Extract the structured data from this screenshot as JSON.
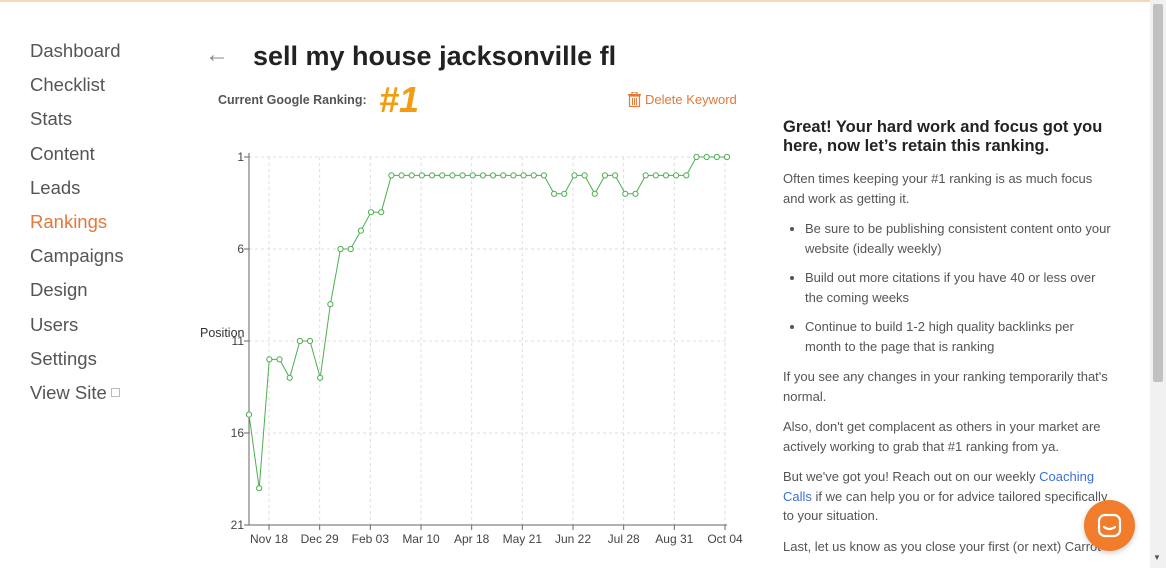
{
  "sidebar": {
    "items": [
      {
        "label": "Dashboard"
      },
      {
        "label": "Checklist"
      },
      {
        "label": "Stats"
      },
      {
        "label": "Content"
      },
      {
        "label": "Leads"
      },
      {
        "label": "Rankings",
        "active": true
      },
      {
        "label": "Campaigns"
      },
      {
        "label": "Design"
      },
      {
        "label": "Users"
      },
      {
        "label": "Settings"
      },
      {
        "label": "View Site",
        "icon": "external-link-icon"
      }
    ]
  },
  "header": {
    "title": "sell my house jacksonville fl",
    "back_icon": "arrow-left-icon"
  },
  "ranking": {
    "label": "Current Google Ranking:",
    "value": "#1",
    "delete_label": "Delete Keyword",
    "delete_icon": "trash-icon"
  },
  "colors": {
    "accent": "#e5773a",
    "rank": "#f39c12",
    "series": "#4caf50",
    "link": "#3b6fd6",
    "chat": "#f07c2c"
  },
  "chart_data": {
    "type": "line",
    "title": "",
    "xlabel": "",
    "ylabel": "Position",
    "yticks": [
      1,
      6,
      11,
      16,
      21
    ],
    "ylim": [
      21,
      1
    ],
    "y_reversed": true,
    "grid": true,
    "xticks": [
      "Nov 18",
      "Dec 29",
      "Feb 03",
      "Mar 10",
      "Apr 18",
      "May 21",
      "Jun 22",
      "Jul 28",
      "Aug 31",
      "Oct 04"
    ],
    "series": [
      {
        "name": "",
        "values": [
          15,
          19,
          12,
          12,
          13,
          11,
          11,
          13,
          9,
          6,
          6,
          5,
          4,
          4,
          2,
          2,
          2,
          2,
          2,
          2,
          2,
          2,
          2,
          2,
          2,
          2,
          2,
          2,
          2,
          2,
          3,
          3,
          2,
          2,
          3,
          2,
          2,
          3,
          3,
          2,
          2,
          2,
          2,
          2,
          1,
          1,
          1,
          1
        ]
      }
    ]
  },
  "panel": {
    "heading": "Great! Your hard work and focus got you here, now let’s retain this ranking.",
    "intro": "Often times keeping your #1 ranking is as much focus and work as getting it.",
    "bullets": [
      "Be sure to be publishing consistent content onto your website (ideally weekly)",
      "Build out more citations if you have 40 or less over the coming weeks",
      "Continue to build 1-2 high quality backlinks per month to the page that is ranking"
    ],
    "p1": "If you see any changes in your ranking temporarily that's normal.",
    "p2": "Also, don't get complacent as others in your market are actively working to grab that #1 ranking from ya.",
    "p3_before": "But we've got you! Reach out on our weekly ",
    "p3_link": "Coaching Calls",
    "p3_after": " if we can help you or for advice tailored specifically to your situation.",
    "p4": "Last, let us know as you close your first (or next) Carrot"
  },
  "chat": {
    "icon": "chat-icon"
  }
}
